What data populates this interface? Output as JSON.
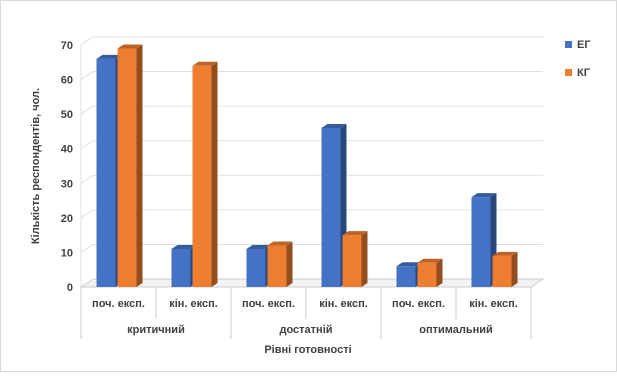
{
  "chart_data": {
    "type": "bar",
    "subtype": "3d-clustered",
    "title": "",
    "xlabel": "Рівні готовності",
    "ylabel": "Кількість респондентів, чол.",
    "ylim": [
      0,
      70
    ],
    "yticks": [
      0,
      10,
      20,
      30,
      40,
      50,
      60,
      70
    ],
    "grid": true,
    "legend_position": "right",
    "groups": [
      {
        "label": "критичний",
        "categories": [
          "поч. експ.",
          "кін. експ."
        ]
      },
      {
        "label": "достатній",
        "categories": [
          "поч. експ.",
          "кін. експ."
        ]
      },
      {
        "label": "оптимальний",
        "categories": [
          "поч. експ.",
          "кін. експ."
        ]
      }
    ],
    "categories": [
      "поч. експ.",
      "кін. експ.",
      "поч. експ.",
      "кін. експ.",
      "поч. експ.",
      "кін. експ."
    ],
    "series": [
      {
        "name": "ЕГ",
        "color": "#4472C4",
        "values": [
          66,
          11,
          11,
          46,
          6,
          26
        ]
      },
      {
        "name": "КГ",
        "color": "#ED7D31",
        "values": [
          69,
          64,
          12,
          15,
          7,
          9
        ]
      }
    ]
  }
}
